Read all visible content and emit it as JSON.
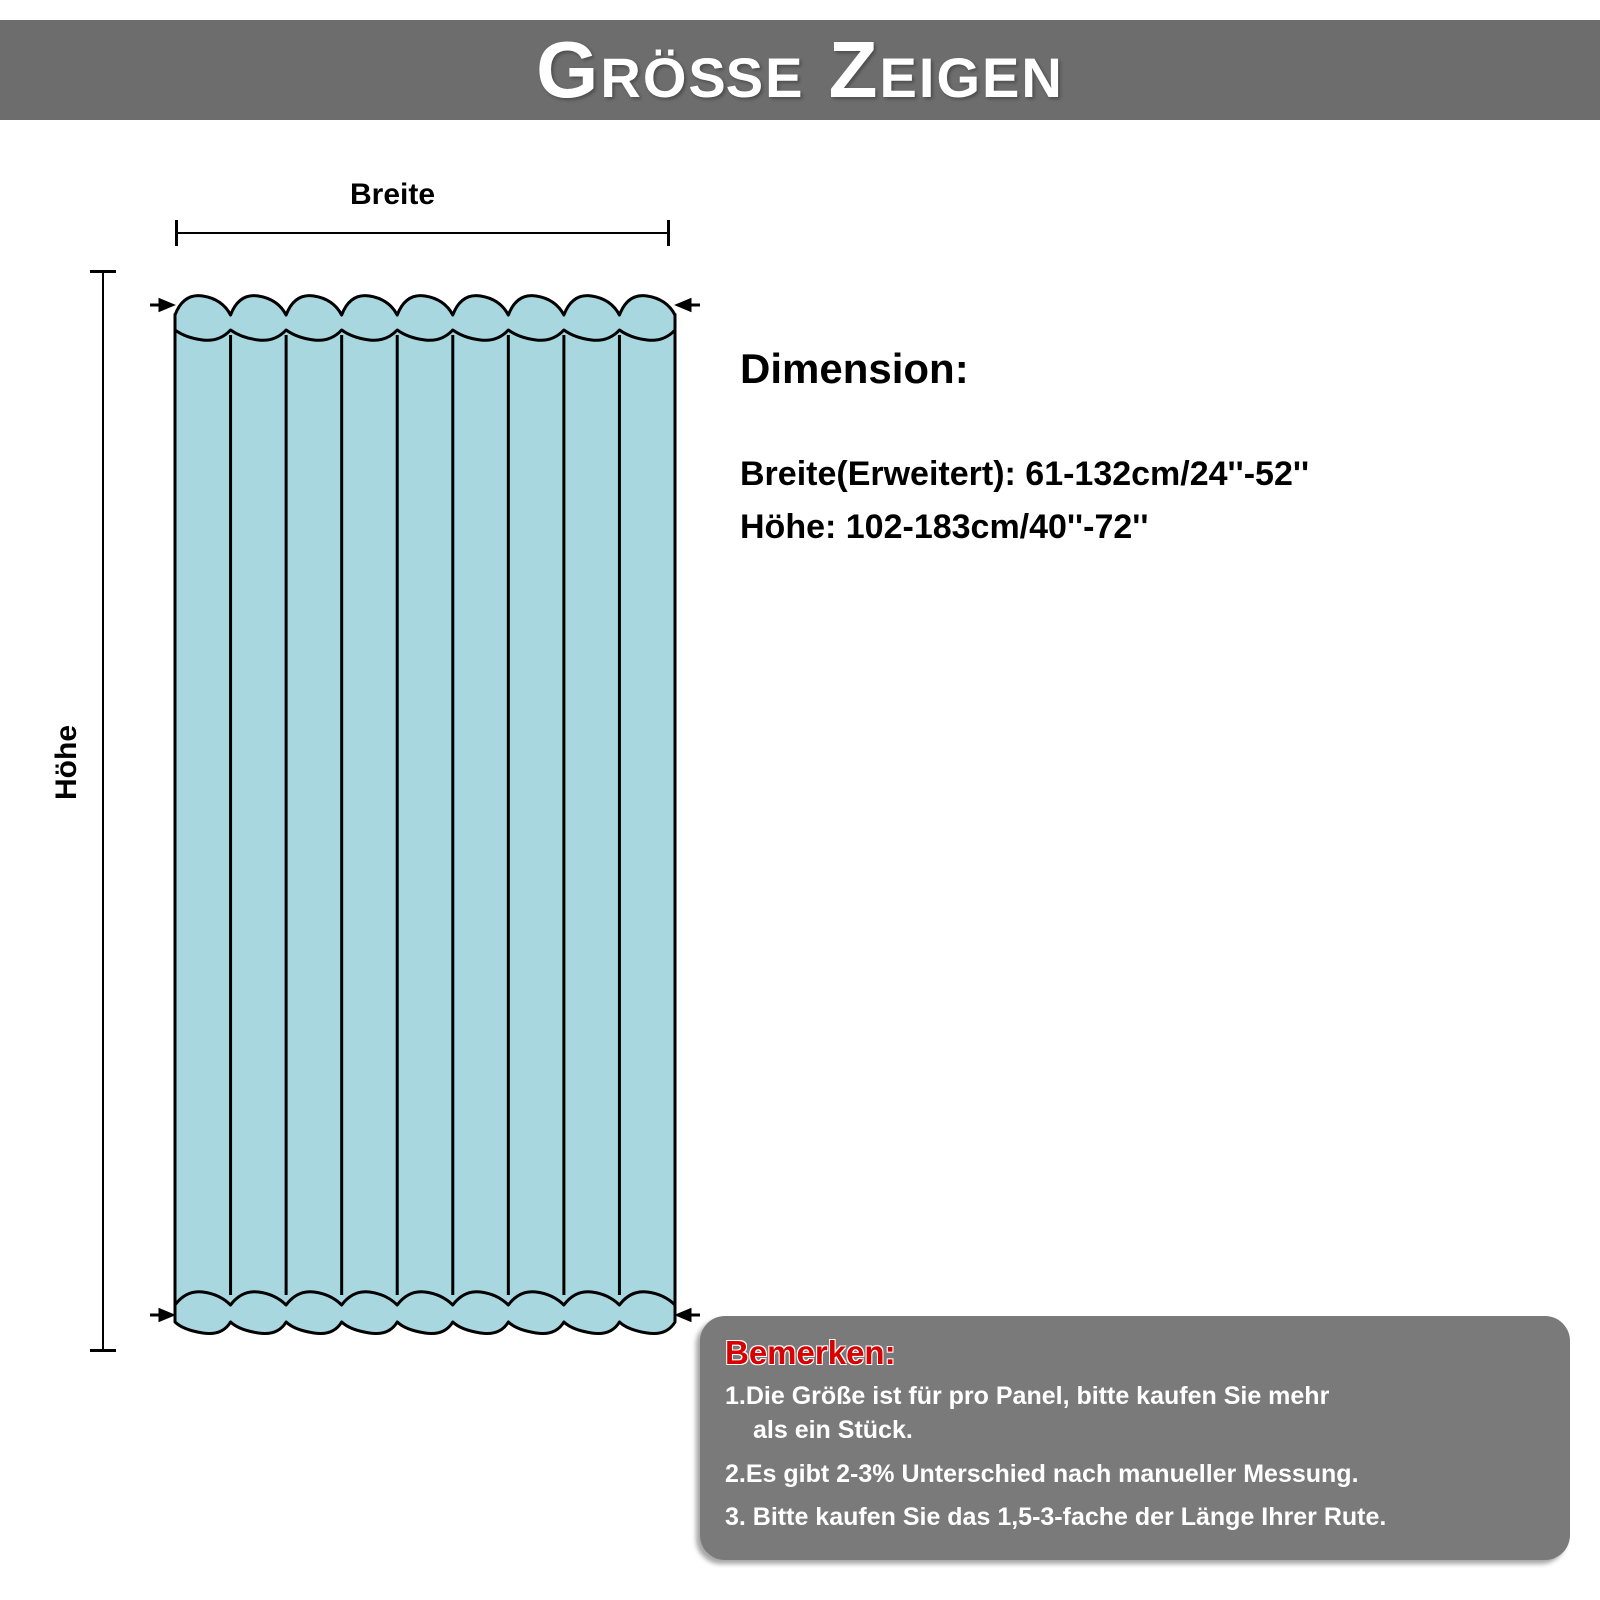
{
  "colors": {
    "header_bg": "#6d6d6d",
    "header_text": "#ffffff",
    "page_bg": "#ffffff",
    "curtain_fill": "#a8d7df",
    "curtain_stroke": "#000000",
    "dim_line_color": "#000000",
    "note_bg": "#7a7a7a",
    "note_title": "#d80000",
    "note_text": "#ffffff"
  },
  "header": {
    "title": "Größe Zeigen"
  },
  "labels": {
    "width": "Breite",
    "height": "Höhe"
  },
  "dimension": {
    "heading": "Dimension:",
    "width_line": "Breite(Erweitert): 61-132cm/24''-52''",
    "height_line": "Höhe: 102-183cm/40''-72''"
  },
  "note": {
    "title": "Bemerken:",
    "items": [
      {
        "num": "1.",
        "text": "Die Größe ist für pro Panel, bitte kaufen Sie mehr",
        "cont": "als ein Stück."
      },
      {
        "num": "2.",
        "text": "Es gibt 2-3% Unterschied nach manueller Messung.",
        "cont": ""
      },
      {
        "num": "3.",
        "text": " Bitte kaufen Sie das 1,5-3-fache der Länge Ihrer Rute.",
        "cont": ""
      }
    ]
  },
  "curtain": {
    "pleats": 9,
    "stroke_width": 3,
    "svg_viewbox": "0 0 550 1110"
  },
  "typography": {
    "header_fontsize": 80,
    "label_fontsize": 30,
    "dim_heading_fontsize": 42,
    "dim_line_fontsize": 34,
    "note_title_fontsize": 33,
    "note_text_fontsize": 25
  }
}
